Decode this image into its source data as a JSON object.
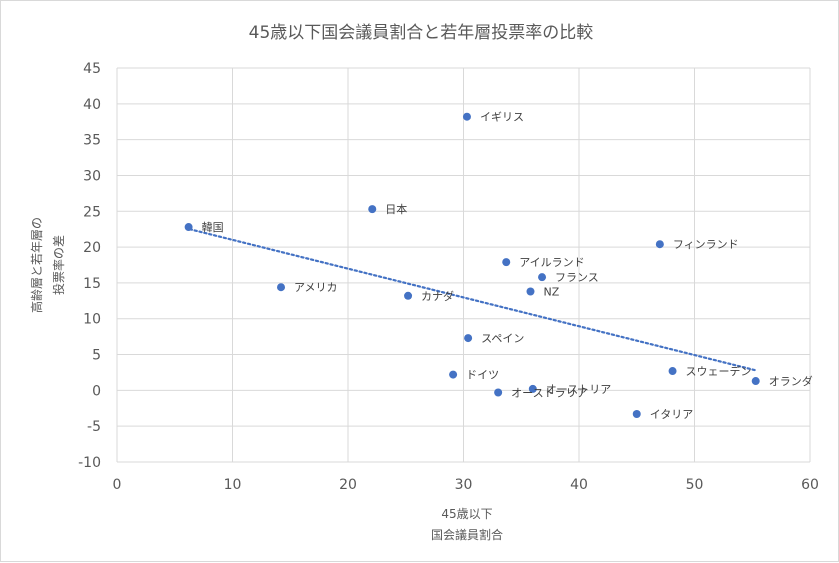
{
  "chart_data": {
    "type": "scatter",
    "title": "45歳以下国会議員割合と若年層投票率の比較",
    "xlabel_lines": [
      "45歳以下",
      "国会議員割合"
    ],
    "ylabel_lines": [
      "高齢層と若年層の",
      "投票率の差"
    ],
    "xlim": [
      0,
      60
    ],
    "ylim": [
      -10,
      45
    ],
    "xticks": [
      0,
      10,
      20,
      30,
      40,
      50,
      60
    ],
    "yticks": [
      -10,
      -5,
      0,
      5,
      10,
      15,
      20,
      25,
      30,
      35,
      40,
      45
    ],
    "grid": true,
    "legend": "none",
    "point_color": "#4472C4",
    "trendline": {
      "style": "dotted",
      "from": [
        6.3,
        22.5
      ],
      "to": [
        55.3,
        2.8
      ]
    },
    "points": [
      {
        "name": "イギリス",
        "x": 30.3,
        "y": 38.2
      },
      {
        "name": "日本",
        "x": 22.1,
        "y": 25.3
      },
      {
        "name": "韓国",
        "x": 6.2,
        "y": 22.8
      },
      {
        "name": "フィンランド",
        "x": 47.0,
        "y": 20.4
      },
      {
        "name": "アイルランド",
        "x": 33.7,
        "y": 17.9
      },
      {
        "name": "フランス",
        "x": 36.8,
        "y": 15.8
      },
      {
        "name": "アメリカ",
        "x": 14.2,
        "y": 14.4
      },
      {
        "name": "NZ",
        "x": 35.8,
        "y": 13.8
      },
      {
        "name": "カナダ",
        "x": 25.2,
        "y": 13.2
      },
      {
        "name": "スペイン",
        "x": 30.4,
        "y": 7.3
      },
      {
        "name": "スウェーデン",
        "x": 48.1,
        "y": 2.7
      },
      {
        "name": "ドイツ",
        "x": 29.1,
        "y": 2.2
      },
      {
        "name": "オランダ",
        "x": 55.3,
        "y": 1.3
      },
      {
        "name": "オーストラリア",
        "x": 33.0,
        "y": -0.3
      },
      {
        "name": "オーストリア",
        "x": 36.0,
        "y": 0.2
      },
      {
        "name": "イタリア",
        "x": 45.0,
        "y": -3.3
      }
    ]
  }
}
